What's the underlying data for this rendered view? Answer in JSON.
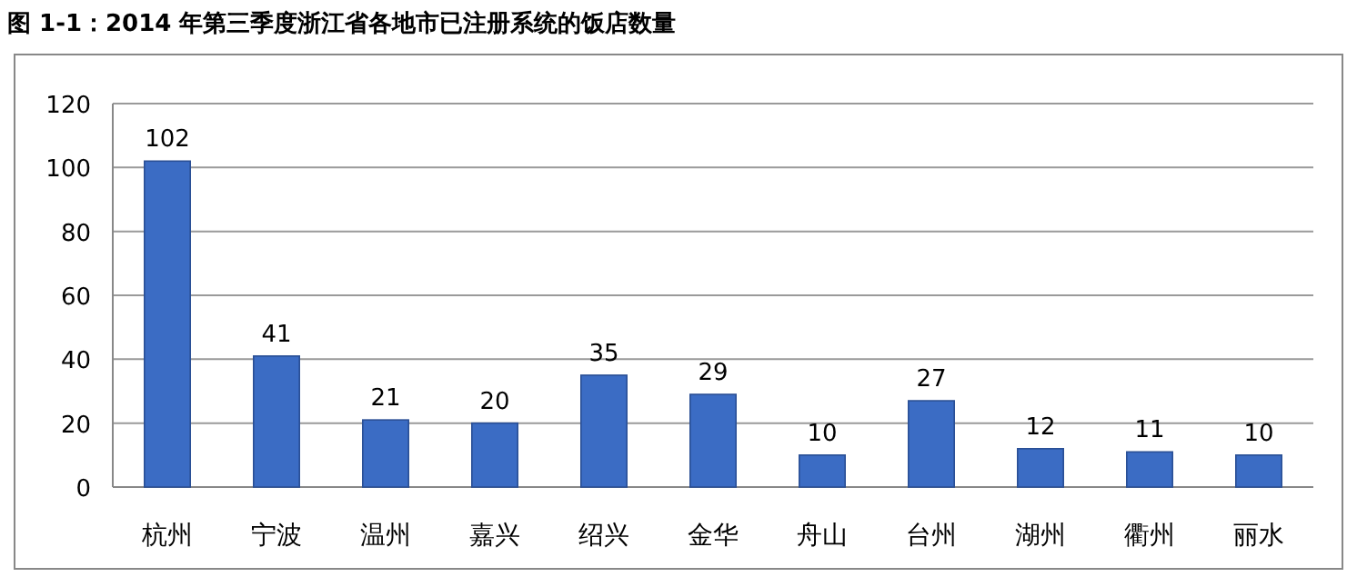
{
  "chart_data": {
    "type": "bar",
    "title": "图 1-1：2014 年第三季度浙江省各地市已注册系统的饭店数量",
    "categories": [
      "杭州",
      "宁波",
      "温州",
      "嘉兴",
      "绍兴",
      "金华",
      "舟山",
      "台州",
      "湖州",
      "衢州",
      "丽水"
    ],
    "values": [
      102,
      41,
      21,
      20,
      35,
      29,
      10,
      27,
      12,
      11,
      10
    ],
    "color": "#3b6cc4",
    "ylim": [
      0,
      120
    ],
    "yticks": [
      0,
      20,
      40,
      60,
      80,
      100,
      120
    ],
    "grid": "y",
    "data_labels": true
  }
}
